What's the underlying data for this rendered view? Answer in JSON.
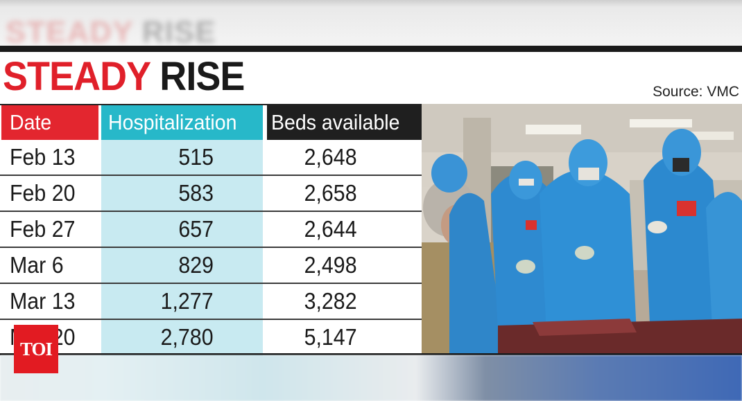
{
  "title": {
    "word1": "STEADY",
    "word2": "RISE"
  },
  "source": "Source: VMC",
  "table": {
    "headers": {
      "date": "Date",
      "hospitalization": "Hospitalization",
      "beds": "Beds available"
    },
    "rows": [
      {
        "date": "Feb 13",
        "hospitalization": "515",
        "beds": "2,648"
      },
      {
        "date": "Feb 20",
        "hospitalization": "583",
        "beds": "2,658"
      },
      {
        "date": "Feb 27",
        "hospitalization": "657",
        "beds": "2,644"
      },
      {
        "date": "Mar 6",
        "hospitalization": "829",
        "beds": "2,498"
      },
      {
        "date": "Mar 13",
        "hospitalization": "1,277",
        "beds": "3,282"
      },
      {
        "date": "Mar 20",
        "hospitalization": "2,780",
        "beds": "5,147"
      }
    ]
  },
  "logo": "TOI",
  "colors": {
    "title_red": "#e0202a",
    "date_header": "#e3262f",
    "hosp_header": "#27b8c9",
    "hosp_column": "#c8eaf1",
    "beds_header": "#1f1f1f",
    "logo_bg": "#e21b22"
  }
}
